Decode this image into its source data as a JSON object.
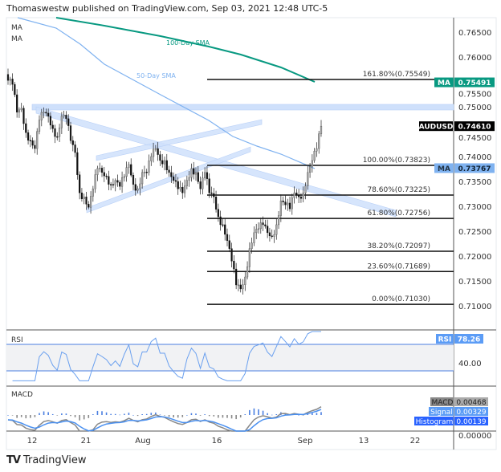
{
  "header": {
    "text": "Thomaswestw published on TradingView.com, Sep 03, 2021 12:48 UTC-5"
  },
  "legend": {
    "ma1": "MA",
    "ma2": "MA"
  },
  "annotations": {
    "sma100": "100-Day SMA",
    "sma50": "50-Day SMA"
  },
  "colors": {
    "sma100": "#089981",
    "sma50": "#7fb2f0",
    "channel": "#cfe0fb",
    "price_label_bg": "#000000",
    "macd": "#888888",
    "signal": "#4a90f0",
    "histogram": "#2962ff"
  },
  "chart_data": {
    "type": "candlestick",
    "symbol": "AUDUSD",
    "y_ticks": [
      "0.76500",
      "0.76000",
      "0.75500",
      "0.75000",
      "0.74500",
      "0.74000",
      "0.73500",
      "0.73000",
      "0.72500",
      "0.72000",
      "0.71500",
      "0.71000"
    ],
    "ylim": [
      0.7095,
      0.7685
    ],
    "x_ticks": [
      "12",
      "21",
      "Aug",
      "16",
      "Sep",
      "13",
      "22"
    ],
    "closes": [
      0.7553,
      0.7545,
      0.7489,
      0.7497,
      0.7448,
      0.7432,
      0.7416,
      0.7473,
      0.7489,
      0.7481,
      0.7456,
      0.744,
      0.7481,
      0.7476,
      0.7432,
      0.7408,
      0.7327,
      0.7319,
      0.7298,
      0.7335,
      0.7376,
      0.7368,
      0.736,
      0.7344,
      0.7352,
      0.734,
      0.736,
      0.7384,
      0.7344,
      0.7335,
      0.7368,
      0.7368,
      0.74,
      0.7416,
      0.7392,
      0.7392,
      0.7368,
      0.7352,
      0.7335,
      0.7327,
      0.7352,
      0.7376,
      0.7368,
      0.7335,
      0.7368,
      0.7327,
      0.7319,
      0.7279,
      0.7263,
      0.7231,
      0.719,
      0.7142,
      0.7134,
      0.7158,
      0.7215,
      0.7247,
      0.7255,
      0.7263,
      0.7247,
      0.7239,
      0.7263,
      0.7311,
      0.7303,
      0.7295,
      0.7327,
      0.7319,
      0.7327,
      0.7368,
      0.7392,
      0.7416,
      0.7461
    ],
    "last_price": {
      "label": "AUDUSD",
      "value": "0.74610"
    },
    "ma_labels": [
      {
        "label": "MA",
        "value": "0.75491",
        "color": "#089981"
      },
      {
        "label": "MA",
        "value": "0.73767",
        "color": "#7fb2f0"
      }
    ],
    "fibonacci": [
      {
        "text": "161.80%(0.75549)",
        "price": 0.75549
      },
      {
        "text": "100.00%(0.73823)",
        "price": 0.73823
      },
      {
        "text": "78.60%(0.73225)",
        "price": 0.73225
      },
      {
        "text": "61.80%(0.72756)",
        "price": 0.72756
      },
      {
        "text": "38.20%(0.72097)",
        "price": 0.72097
      },
      {
        "text": "23.60%(0.71689)",
        "price": 0.71689
      },
      {
        "text": "0.00%(0.71030)",
        "price": 0.7103
      }
    ],
    "resistance_zone": 0.75,
    "rsi": {
      "title": "RSI",
      "label": "RSI",
      "value": "78.26",
      "tick": "40.00",
      "upper": 70,
      "lower": 30
    },
    "macd": {
      "title": "MACD",
      "rows": [
        {
          "label": "MACD",
          "value": "0.00468"
        },
        {
          "label": "Signal",
          "value": "0.00329"
        },
        {
          "label": "Histogram",
          "value": "0.00139"
        }
      ],
      "tick": "0.00000"
    }
  },
  "footer": {
    "brand": "TradingView"
  }
}
